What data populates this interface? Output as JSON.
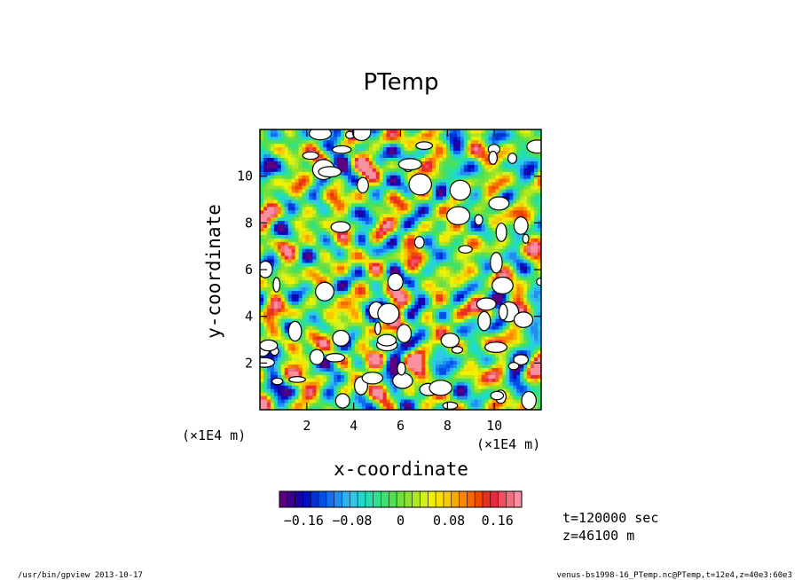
{
  "chart_data": {
    "type": "heatmap",
    "title": "PTemp",
    "xlabel": "x-coordinate",
    "ylabel": "y-coordinate",
    "x_unit_label": "(×1E4 m)",
    "y_unit_label": "(×1E4 m)",
    "xlim": [
      0,
      12
    ],
    "ylim": [
      0,
      12
    ],
    "x_ticks": [
      2,
      4,
      6,
      8,
      10
    ],
    "y_ticks": [
      2,
      4,
      6,
      8,
      10
    ],
    "x_tick_labels": [
      "2",
      "4",
      "6",
      "8",
      "10"
    ],
    "y_tick_labels": [
      "2",
      "4",
      "6",
      "8",
      "10"
    ],
    "colorbar": {
      "range": [
        -0.2,
        0.2
      ],
      "tick_values": [
        -0.16,
        -0.08,
        0,
        0.08,
        0.16
      ],
      "tick_labels": [
        "−0.16",
        "−0.08",
        "0",
        "0.08",
        "0.16"
      ],
      "colors": [
        "#5a0080",
        "#3a0090",
        "#1c00a8",
        "#0010c0",
        "#0030d8",
        "#0050e8",
        "#1070f0",
        "#2090f0",
        "#30b0f0",
        "#30c8e8",
        "#20d8d0",
        "#20e0b0",
        "#30e090",
        "#40e070",
        "#50e050",
        "#70e040",
        "#90e030",
        "#b0e820",
        "#d0f020",
        "#f0f000",
        "#f8e000",
        "#f8c800",
        "#f8a800",
        "#f88800",
        "#f86800",
        "#f04800",
        "#e83020",
        "#e82840",
        "#f05060",
        "#f07080",
        "#f890a0"
      ]
    },
    "missing_color": "#ffffff",
    "annotations": {
      "time": "t=120000 sec",
      "height": "z=46100 m"
    }
  },
  "footer": {
    "left": "/usr/bin/gpview  2013-10-17",
    "right": "venus-bs1998-16_PTemp.nc@PTemp,t=12e4,z=40e3:60e3"
  }
}
